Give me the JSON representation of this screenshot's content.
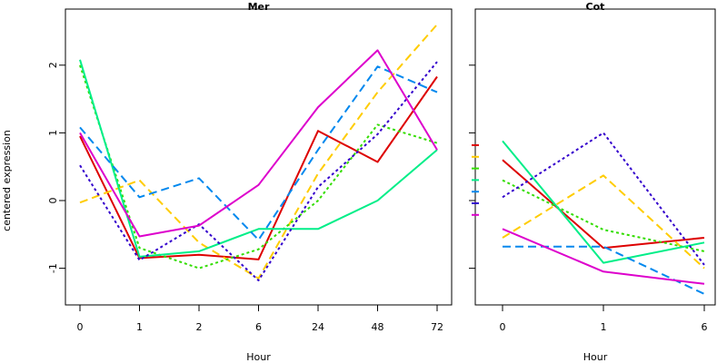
{
  "ylabel": "centered expression",
  "colors": [
    "#dd0000",
    "#ffcc00",
    "#33dd00",
    "#00ee88",
    "#0088ee",
    "#3300cc",
    "#dd00cc"
  ],
  "dashes": [
    "none",
    "9,5",
    "3,3",
    "none",
    "9,5",
    "3,3",
    "none"
  ],
  "chart_data": [
    {
      "type": "line",
      "title": "Mer",
      "xlabel": "Hour",
      "ylabel": "centered expression",
      "categories": [
        "0",
        "1",
        "2",
        "6",
        "24",
        "48",
        "72"
      ],
      "yticks": [
        -1,
        0,
        1,
        2
      ],
      "ylim": [
        -1.5,
        2.65
      ],
      "grid": false,
      "series": [
        {
          "values": [
            0.95,
            -0.85,
            -0.8,
            -0.87,
            1.03,
            0.57,
            1.83
          ]
        },
        {
          "values": [
            -0.03,
            0.3,
            -0.62,
            -1.15,
            0.4,
            1.6,
            2.6
          ]
        },
        {
          "values": [
            2.0,
            -0.7,
            -1.0,
            -0.72,
            0.0,
            1.12,
            0.85
          ]
        },
        {
          "values": [
            2.08,
            -0.83,
            -0.75,
            -0.42,
            -0.42,
            0.0,
            0.75
          ]
        },
        {
          "values": [
            1.08,
            0.05,
            0.33,
            -0.58,
            0.75,
            1.98,
            1.6
          ]
        },
        {
          "values": [
            0.52,
            -0.88,
            -0.35,
            -1.18,
            0.2,
            0.98,
            2.05
          ]
        },
        {
          "values": [
            1.0,
            -0.53,
            -0.37,
            0.23,
            1.38,
            2.22,
            0.75
          ]
        }
      ]
    },
    {
      "type": "line",
      "title": "Cot",
      "xlabel": "Hour",
      "categories": [
        "0",
        "1",
        "6"
      ],
      "yticks": [
        -1,
        0,
        1,
        2
      ],
      "ylim": [
        -1.5,
        2.65
      ],
      "grid": false,
      "series": [
        {
          "values": [
            0.6,
            -0.7,
            -0.55
          ]
        },
        {
          "values": [
            -0.55,
            0.37,
            -1.0
          ]
        },
        {
          "values": [
            0.3,
            -0.43,
            -0.75
          ]
        },
        {
          "values": [
            0.88,
            -0.92,
            -0.62
          ]
        },
        {
          "values": [
            -0.68,
            -0.68,
            -1.38
          ]
        },
        {
          "values": [
            0.05,
            1.0,
            -0.95
          ]
        },
        {
          "values": [
            -0.42,
            -1.05,
            -1.23
          ]
        }
      ]
    }
  ]
}
